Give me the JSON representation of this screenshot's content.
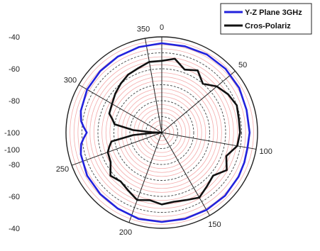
{
  "chart_data": {
    "type": "polar-line",
    "angle_unit": "degrees",
    "angle_zero": "top",
    "angle_direction": "clockwise",
    "angle_ticks": [
      0,
      50,
      100,
      150,
      200,
      250,
      300,
      350
    ],
    "radial_range": [
      -100,
      -40
    ],
    "radial_ticks_upper": [
      -40,
      -60,
      -80,
      -100
    ],
    "radial_ticks_lower": [
      -100,
      -80,
      -60,
      -40
    ],
    "grid": true,
    "legend_position": "top-right",
    "series": [
      {
        "name": "Y-Z Plane 3GHz",
        "color": "#2222dd",
        "angles": [
          0,
          15,
          30,
          45,
          60,
          75,
          90,
          100,
          110,
          120,
          135,
          150,
          165,
          180,
          195,
          210,
          225,
          240,
          255,
          262,
          266,
          270,
          274,
          278,
          285,
          300,
          315,
          330,
          345,
          360
        ],
        "values": [
          -44,
          -44,
          -43.5,
          -43.5,
          -44,
          -45,
          -45,
          -45.5,
          -45,
          -44.5,
          -44,
          -44,
          -44,
          -44,
          -44,
          -45,
          -45.5,
          -46,
          -47.5,
          -49,
          -51,
          -53,
          -51,
          -49,
          -47.5,
          -46,
          -45.5,
          -45,
          -44.5,
          -44
        ]
      },
      {
        "name": "Cros-Polariz",
        "color": "#111111",
        "angles": [
          0,
          10,
          20,
          30,
          40,
          50,
          60,
          70,
          80,
          90,
          100,
          110,
          120,
          130,
          140,
          150,
          160,
          170,
          180,
          190,
          200,
          210,
          220,
          230,
          240,
          250,
          255,
          260,
          265,
          268,
          270,
          272,
          275,
          280,
          285,
          290,
          300,
          310,
          320,
          330,
          340,
          350,
          360
        ],
        "values": [
          -55,
          -53,
          -58,
          -55,
          -60,
          -55,
          -52,
          -50,
          -51,
          -51,
          -52,
          -57,
          -53,
          -58,
          -56,
          -53,
          -55,
          -56,
          -55,
          -57,
          -55,
          -58,
          -60,
          -58,
          -63,
          -64,
          -66,
          -68,
          -82,
          -94,
          -100,
          -94,
          -82,
          -70,
          -68,
          -65,
          -64,
          -62,
          -60,
          -58,
          -57,
          -55,
          -55
        ]
      }
    ]
  }
}
